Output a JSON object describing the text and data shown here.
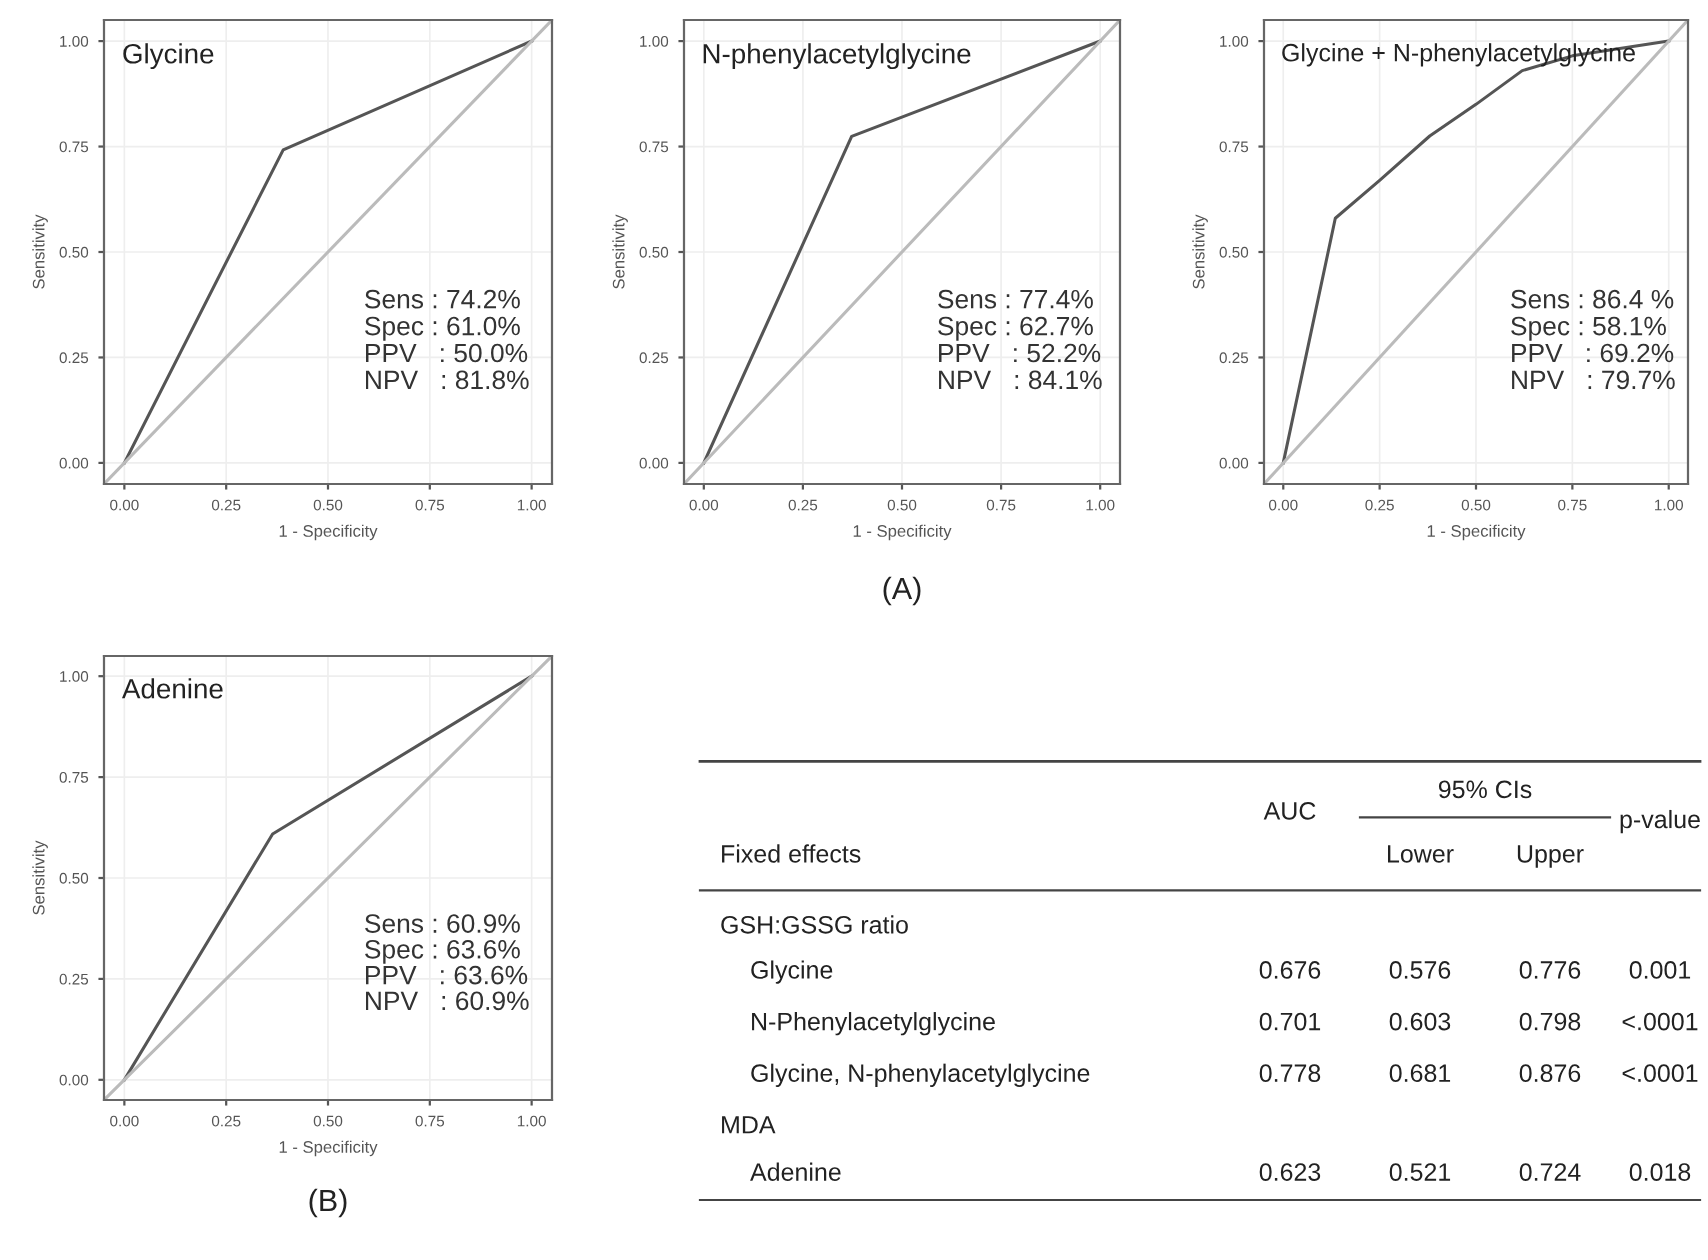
{
  "chart_data": [
    {
      "type": "line",
      "title": "Glycine",
      "xlabel": "1 - Specificity",
      "ylabel": "Sensitivity",
      "xlim": [
        -0.05,
        1.05
      ],
      "ylim": [
        -0.05,
        1.05
      ],
      "xticks": [
        {
          "value": 0,
          "label": "0.00"
        },
        {
          "value": 0.25,
          "label": "0.25"
        },
        {
          "value": 0.5,
          "label": "0.50"
        },
        {
          "value": 0.75,
          "label": "0.75"
        },
        {
          "value": 1,
          "label": "1.00"
        }
      ],
      "yticks": [
        {
          "value": 0,
          "label": "0.00"
        },
        {
          "value": 0.25,
          "label": "0.25"
        },
        {
          "value": 0.5,
          "label": "0.50"
        },
        {
          "value": 0.75,
          "label": "0.75"
        },
        {
          "value": 1,
          "label": "1.00"
        }
      ],
      "grid": true,
      "series": [
        {
          "color": "#555555",
          "x": [
            0,
            0.39,
            1
          ],
          "values": [
            0,
            0.742,
            1
          ]
        },
        {
          "color": "#bbbbbb",
          "x": [
            -0.05,
            1.05
          ],
          "values": [
            -0.05,
            1.05
          ]
        }
      ],
      "annotations": [
        "Sens : 74.2%",
        "Spec : 61.0%",
        "PPV   : 50.0%",
        "NPV   : 81.8%"
      ]
    },
    {
      "type": "line",
      "title": "N-phenylacetylglycine",
      "xlabel": "1 - Specificity",
      "ylabel": "Sensitivity",
      "xlim": [
        -0.05,
        1.05
      ],
      "ylim": [
        -0.05,
        1.05
      ],
      "xticks": [
        {
          "value": 0,
          "label": "0.00"
        },
        {
          "value": 0.25,
          "label": "0.25"
        },
        {
          "value": 0.5,
          "label": "0.50"
        },
        {
          "value": 0.75,
          "label": "0.75"
        },
        {
          "value": 1,
          "label": "1.00"
        }
      ],
      "yticks": [
        {
          "value": 0,
          "label": "0.00"
        },
        {
          "value": 0.25,
          "label": "0.25"
        },
        {
          "value": 0.5,
          "label": "0.50"
        },
        {
          "value": 0.75,
          "label": "0.75"
        },
        {
          "value": 1,
          "label": "1.00"
        }
      ],
      "grid": true,
      "series": [
        {
          "color": "#555555",
          "x": [
            0,
            0.373,
            1
          ],
          "values": [
            0,
            0.774,
            1
          ]
        },
        {
          "color": "#bbbbbb",
          "x": [
            -0.05,
            1.05
          ],
          "values": [
            -0.05,
            1.05
          ]
        }
      ],
      "annotations": [
        "Sens : 77.4%",
        "Spec : 62.7%",
        "PPV   : 52.2%",
        "NPV   : 84.1%",
        "(A)"
      ]
    },
    {
      "type": "line",
      "title": "Glycine + N-phenylacetylglycine",
      "xlabel": "1 - Specificity",
      "ylabel": "Sensitivity",
      "xlim": [
        -0.05,
        1.05
      ],
      "ylim": [
        -0.05,
        1.05
      ],
      "xticks": [
        {
          "value": 0,
          "label": "0.00"
        },
        {
          "value": 0.25,
          "label": "0.25"
        },
        {
          "value": 0.5,
          "label": "0.50"
        },
        {
          "value": 0.75,
          "label": "0.75"
        },
        {
          "value": 1,
          "label": "1.00"
        }
      ],
      "yticks": [
        {
          "value": 0,
          "label": "0.00"
        },
        {
          "value": 0.25,
          "label": "0.25"
        },
        {
          "value": 0.5,
          "label": "0.50"
        },
        {
          "value": 0.75,
          "label": "0.75"
        },
        {
          "value": 1,
          "label": "1.00"
        }
      ],
      "grid": true,
      "series": [
        {
          "color": "#555555",
          "x": [
            0,
            0.135,
            0.25,
            0.38,
            0.5,
            0.62,
            0.75,
            1
          ],
          "values": [
            0,
            0.58,
            0.67,
            0.775,
            0.85,
            0.93,
            0.965,
            1
          ]
        },
        {
          "color": "#bbbbbb",
          "x": [
            -0.05,
            1.05
          ],
          "values": [
            -0.05,
            1.05
          ]
        }
      ],
      "annotations": [
        "Sens : 86.4 %",
        "Spec : 58.1%",
        "PPV   : 69.2%",
        "NPV   : 79.7%"
      ]
    },
    {
      "type": "line",
      "title": "Adenine",
      "xlabel": "1 - Specificity",
      "ylabel": "Sensitivity",
      "xlim": [
        -0.05,
        1.05
      ],
      "ylim": [
        -0.05,
        1.05
      ],
      "xticks": [
        {
          "value": 0,
          "label": "0.00"
        },
        {
          "value": 0.25,
          "label": "0.25"
        },
        {
          "value": 0.5,
          "label": "0.50"
        },
        {
          "value": 0.75,
          "label": "0.75"
        },
        {
          "value": 1,
          "label": "1.00"
        }
      ],
      "yticks": [
        {
          "value": 0,
          "label": "0.00"
        },
        {
          "value": 0.25,
          "label": "0.25"
        },
        {
          "value": 0.5,
          "label": "0.50"
        },
        {
          "value": 0.75,
          "label": "0.75"
        },
        {
          "value": 1,
          "label": "1.00"
        }
      ],
      "grid": true,
      "series": [
        {
          "color": "#555555",
          "x": [
            0,
            0.364,
            1
          ],
          "values": [
            0,
            0.609,
            1
          ]
        },
        {
          "color": "#bbbbbb",
          "x": [
            -0.05,
            1.05
          ],
          "values": [
            -0.05,
            1.05
          ]
        }
      ],
      "annotations": [
        "Sens : 60.9%",
        "Spec : 63.6%",
        "PPV   : 63.6%",
        "NPV   : 60.9%",
        "(B)"
      ]
    },
    {
      "type": "other",
      "annotations": [
        "AUC",
        "95% CIs",
        "p-value",
        "Fixed effects",
        "Lower",
        "Upper",
        "GSH:GSSG ratio",
        "Glycine",
        "0.676",
        "0.576",
        "0.776",
        "0.001",
        "N-Phenylacetylglycine",
        "0.701",
        "0.603",
        "0.798",
        "<.0001",
        "Glycine, N-phenylacetylglycine",
        "0.778",
        "0.681",
        "0.876",
        "<.0001",
        "MDA",
        "Adenine",
        "0.623",
        "0.521",
        "0.724",
        "0.018"
      ]
    }
  ]
}
